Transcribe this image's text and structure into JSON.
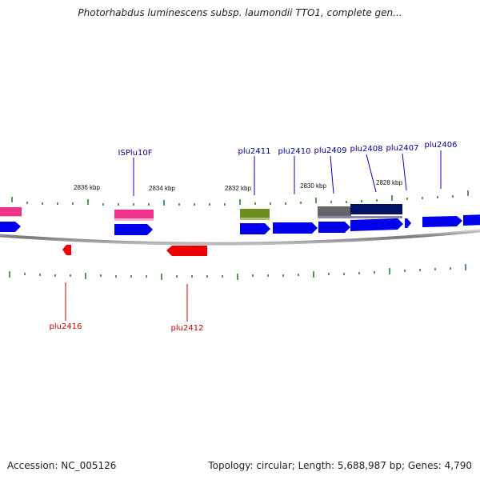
{
  "title": "Photorhabdus luminescens subsp. laumondii TTO1, complete gen...",
  "accession": "Accession: NC_005126",
  "summary": "Topology: circular; Length: 5,688,987 bp; Genes: 4,790",
  "scale_labels": [
    "2836 kbp",
    "2834 kbp",
    "2832 kbp",
    "2830 kbp",
    "2828 kbp"
  ],
  "genes_forward": [
    {
      "label": "ISPlu10F",
      "color": "#000099"
    },
    {
      "label": "plu2411",
      "color": "#000099"
    },
    {
      "label": "plu2410",
      "color": "#000099"
    },
    {
      "label": "plu2409",
      "color": "#000099"
    },
    {
      "label": "plu2408",
      "color": "#000099"
    },
    {
      "label": "plu2407",
      "color": "#000099"
    },
    {
      "label": "plu2406",
      "color": "#000099"
    }
  ],
  "genes_reverse": [
    {
      "label": "plu2416",
      "color": "#cc0000"
    },
    {
      "label": "plu2412",
      "color": "#cc0000"
    }
  ],
  "colors": {
    "forward_gene": "#0000ee",
    "reverse_gene": "#ee0000",
    "ise_feature": "#ee3388",
    "misc_feature": "#6b8e23",
    "region_gray": "#666666",
    "region_navy": "#001166",
    "tick": "#1a7a1a",
    "backbone": "#888888"
  }
}
